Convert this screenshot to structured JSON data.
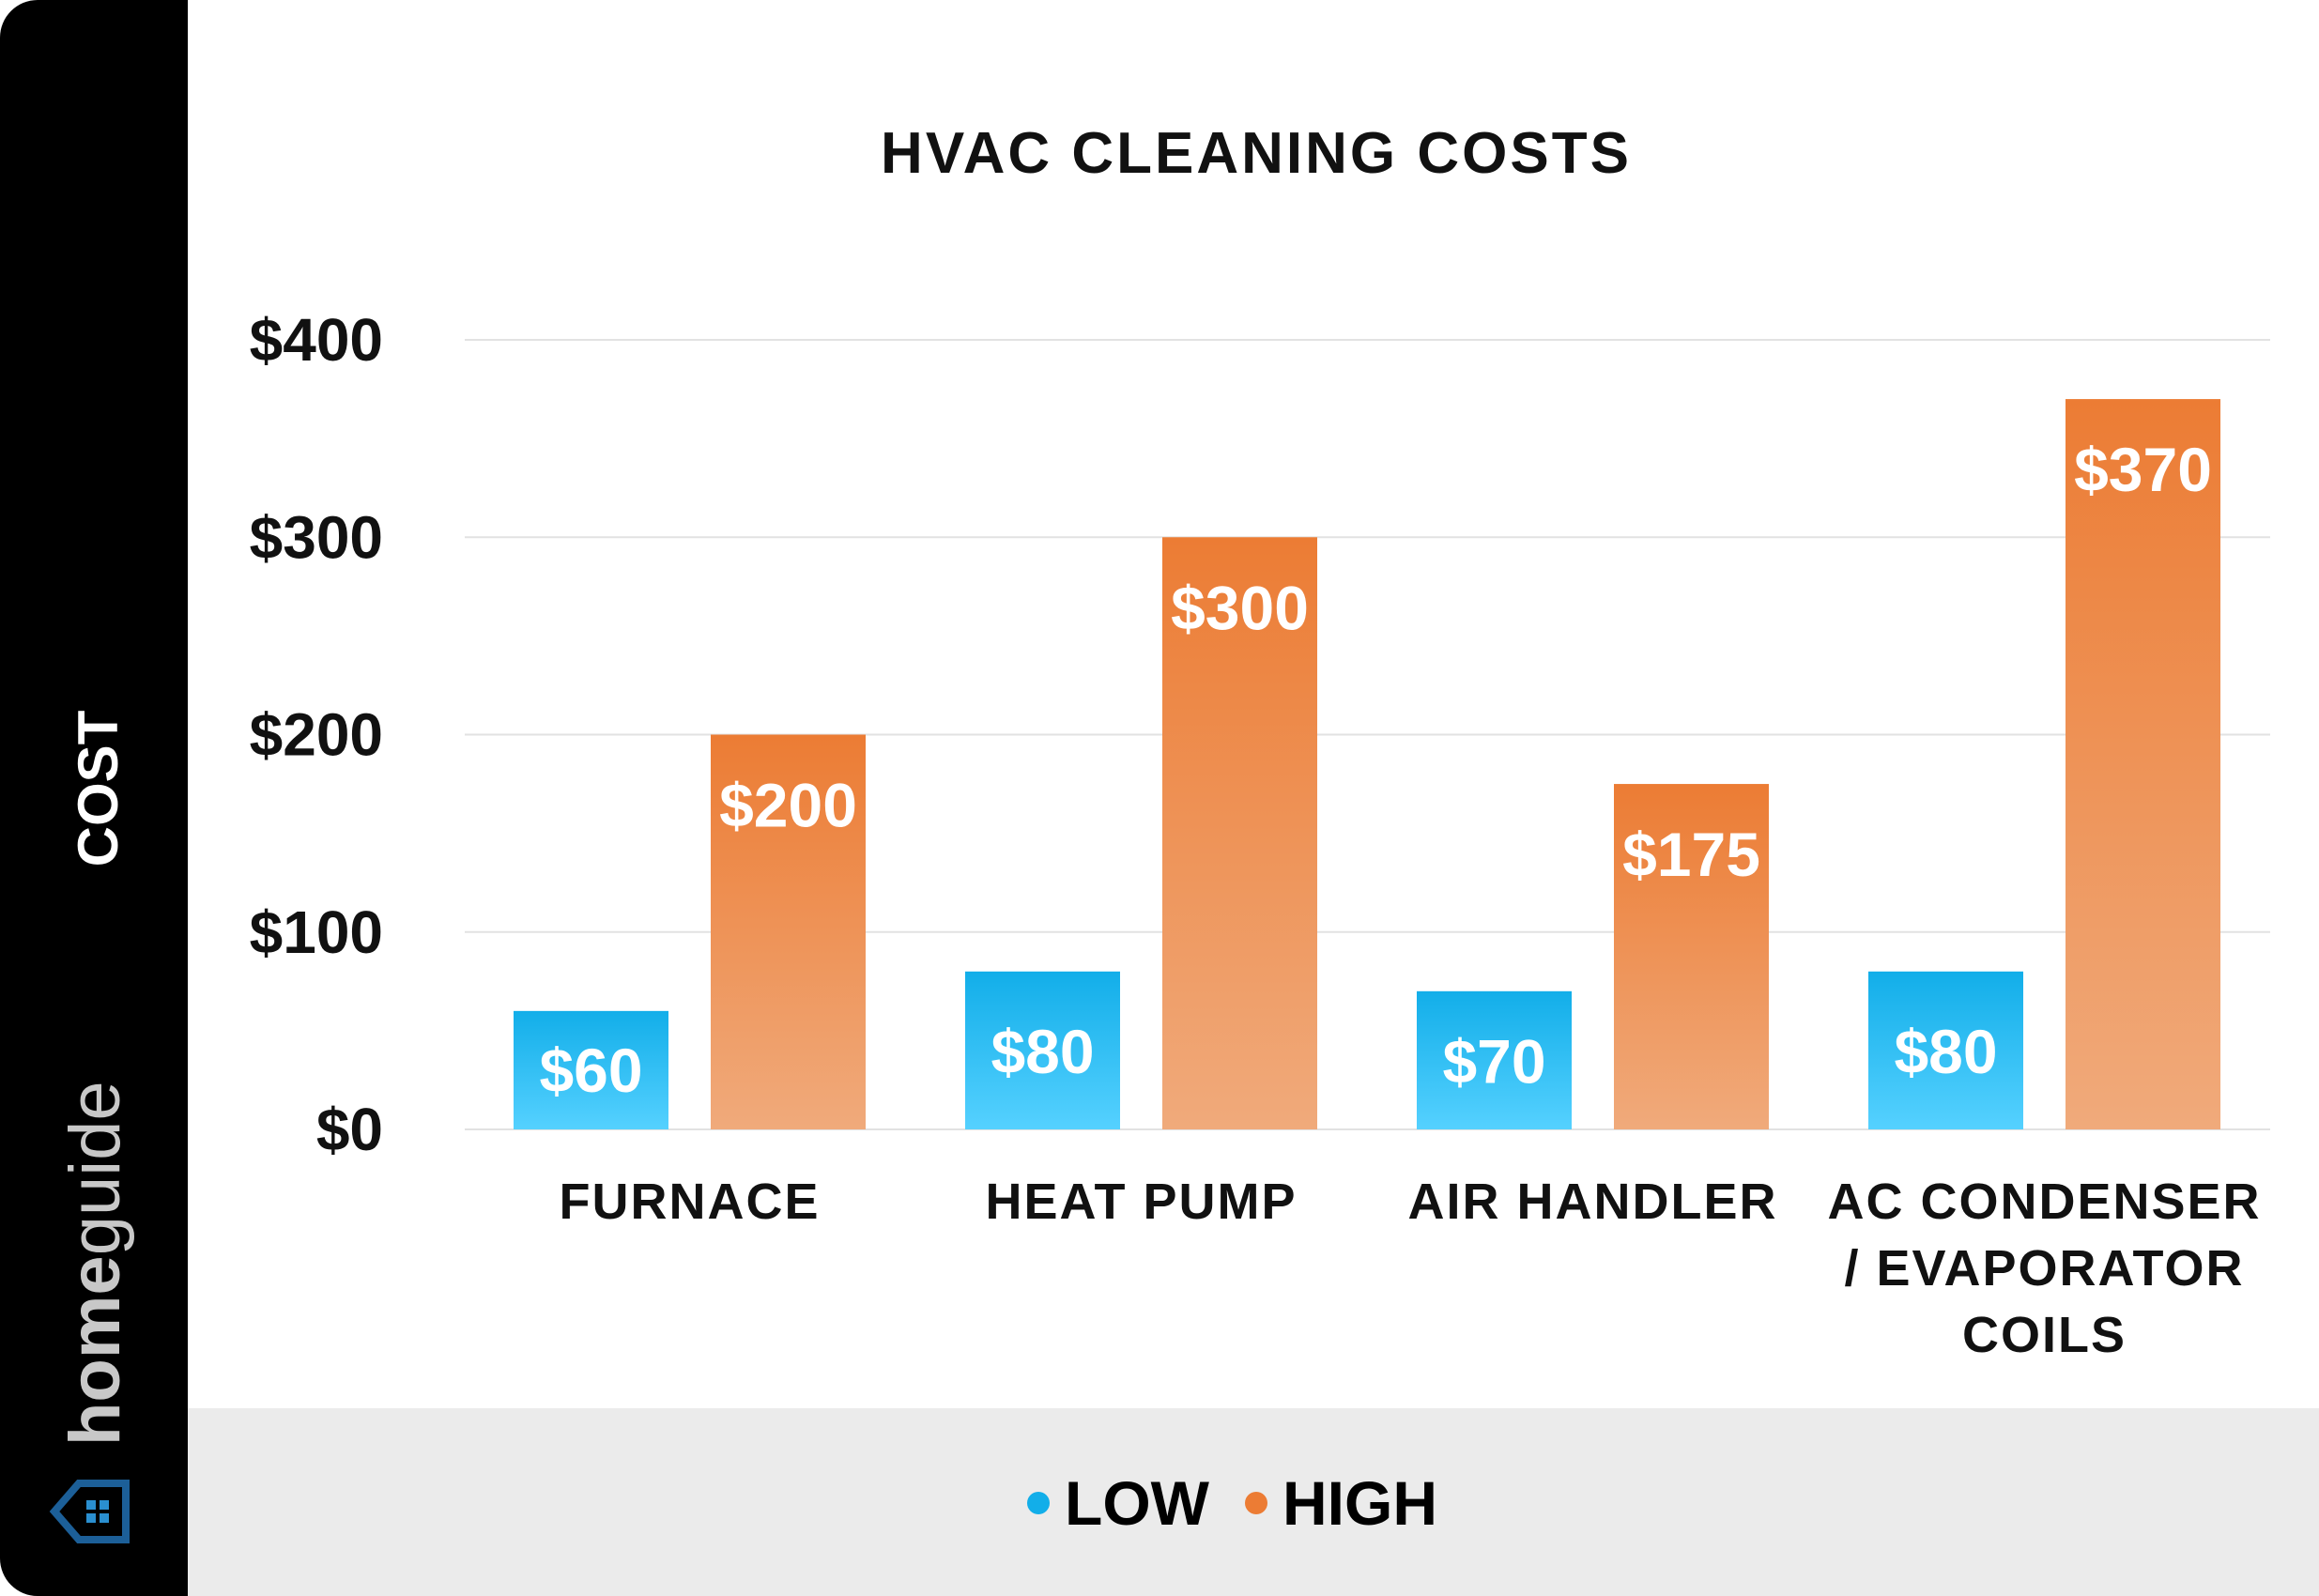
{
  "brand": {
    "name": "homeguide",
    "name_light_part": "home",
    "name_regular_part": "guide"
  },
  "colors": {
    "low": "#12aee9",
    "low_light": "#55d1ff",
    "high": "#ec7c34",
    "high_light": "#f0aa7b",
    "sidebar": "#000000",
    "footer": "#ebebeb",
    "grid": "#e2e2e2"
  },
  "chart_data": {
    "type": "bar",
    "title": "HVAC CLEANING COSTS",
    "ylabel": "COST",
    "xlabel": "",
    "ylim": [
      0,
      400
    ],
    "yticks": [
      0,
      100,
      200,
      300,
      400
    ],
    "ytick_labels": [
      "$0",
      "$100",
      "$200",
      "$300",
      "$400"
    ],
    "grid": true,
    "legend_position": "bottom",
    "categories": [
      "FURNACE",
      "HEAT PUMP",
      "AIR HANDLER",
      "AC CONDENSER / EVAPORATOR COILS"
    ],
    "category_lines": [
      [
        "FURNACE"
      ],
      [
        "HEAT PUMP"
      ],
      [
        "AIR HANDLER"
      ],
      [
        "AC CONDENSER",
        "/ EVAPORATOR",
        "COILS"
      ]
    ],
    "series": [
      {
        "name": "LOW",
        "values": [
          60,
          80,
          70,
          80
        ],
        "labels": [
          "$60",
          "$80",
          "$70",
          "$80"
        ]
      },
      {
        "name": "HIGH",
        "values": [
          200,
          300,
          175,
          370
        ],
        "labels": [
          "$200",
          "$300",
          "$175",
          "$370"
        ]
      }
    ]
  }
}
